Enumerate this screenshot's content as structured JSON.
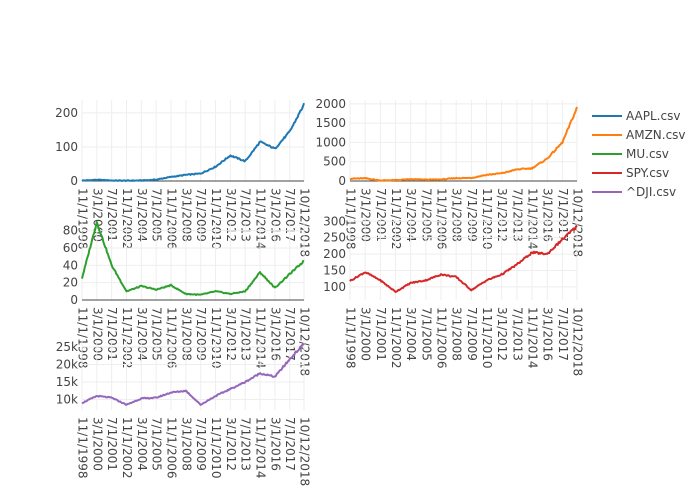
{
  "chart_data": [
    {
      "type": "line",
      "series": [
        {
          "name": "AAPL.csv",
          "color": "#1f77b4"
        }
      ],
      "x": [
        "11/1/1998",
        "3/1/2000",
        "7/1/2001",
        "11/1/2002",
        "3/1/2004",
        "7/1/2005",
        "11/1/2006",
        "3/1/2008",
        "7/1/2009",
        "11/1/2010",
        "3/1/2012",
        "7/1/2013",
        "11/1/2014",
        "3/1/2016",
        "7/1/2017",
        "10/12/2018"
      ],
      "values": [
        1.2,
        3.5,
        1.5,
        1.0,
        1.5,
        4,
        12,
        18,
        22,
        42,
        75,
        58,
        115,
        95,
        145,
        225
      ],
      "x_ticks": [
        "11/1/1998",
        "3/1/2000",
        "7/1/2001",
        "11/1/2002",
        "3/1/2004",
        "7/1/2005",
        "11/1/2006",
        "3/1/2008",
        "7/1/2009",
        "11/1/2010",
        "3/1/2012",
        "7/1/2013",
        "11/1/2014",
        "3/1/2016",
        "7/1/2017",
        "10/12/2018"
      ],
      "y_ticks": [
        0,
        100,
        200
      ],
      "y_tick_labels": [
        "0",
        "100",
        "200"
      ],
      "ylim": [
        0,
        238
      ],
      "grid": true
    },
    {
      "type": "line",
      "series": [
        {
          "name": "AMZN.csv",
          "color": "#ff7f0e"
        }
      ],
      "x": [
        "11/1/1998",
        "3/1/2000",
        "7/1/2001",
        "11/1/2002",
        "3/1/2004",
        "7/1/2005",
        "11/1/2006",
        "3/1/2008",
        "7/1/2009",
        "11/1/2010",
        "3/1/2012",
        "7/1/2013",
        "11/1/2014",
        "3/1/2016",
        "7/1/2017",
        "10/12/2018"
      ],
      "values": [
        60,
        70,
        15,
        22,
        45,
        35,
        38,
        75,
        80,
        160,
        200,
        300,
        330,
        580,
        1000,
        1900
      ],
      "x_ticks": [
        "11/1/1998",
        "3/1/2000",
        "7/1/2001",
        "11/1/2002",
        "3/1/2004",
        "7/1/2005",
        "11/1/2006",
        "3/1/2008",
        "7/1/2009",
        "11/1/2010",
        "3/1/2012",
        "7/1/2013",
        "11/1/2014",
        "3/1/2016",
        "7/1/2017",
        "10/12/2018"
      ],
      "y_ticks": [
        0,
        500,
        1000,
        1500,
        2000
      ],
      "y_tick_labels": [
        "0",
        "500",
        "1000",
        "1500",
        "2000"
      ],
      "ylim": [
        0,
        2100
      ],
      "grid": true
    },
    {
      "type": "line",
      "series": [
        {
          "name": "MU.csv",
          "color": "#2ca02c"
        }
      ],
      "x": [
        "11/1/1998",
        "3/1/2000",
        "7/1/2001",
        "11/1/2002",
        "3/1/2004",
        "7/1/2005",
        "11/1/2006",
        "3/1/2008",
        "7/1/2009",
        "11/1/2010",
        "3/1/2012",
        "7/1/2013",
        "11/1/2014",
        "3/1/2016",
        "7/1/2017",
        "10/12/2018"
      ],
      "values": [
        25,
        90,
        40,
        10,
        16,
        12,
        17,
        7,
        6,
        10,
        7,
        10,
        32,
        14,
        30,
        45
      ],
      "x_ticks": [
        "11/1/1998",
        "3/1/2000",
        "7/1/2001",
        "11/1/2002",
        "3/1/2004",
        "7/1/2005",
        "11/1/2006",
        "3/1/2008",
        "7/1/2009",
        "11/1/2010",
        "3/1/2012",
        "7/1/2013",
        "11/1/2014",
        "3/1/2016",
        "7/1/2017",
        "10/12/2018"
      ],
      "y_ticks": [
        0,
        20,
        40,
        60,
        80
      ],
      "y_tick_labels": [
        "0",
        "20",
        "40",
        "60",
        "80"
      ],
      "ylim": [
        0,
        90
      ],
      "grid": true
    },
    {
      "type": "line",
      "series": [
        {
          "name": "SPY.csv",
          "color": "#d62728"
        }
      ],
      "x": [
        "11/1/1998",
        "3/1/2000",
        "7/1/2001",
        "11/1/2002",
        "3/1/2004",
        "7/1/2005",
        "11/1/2006",
        "3/1/2008",
        "7/1/2009",
        "11/1/2010",
        "3/1/2012",
        "7/1/2013",
        "11/1/2014",
        "3/1/2016",
        "7/1/2017",
        "10/12/2018"
      ],
      "values": [
        118,
        145,
        120,
        85,
        112,
        120,
        138,
        130,
        90,
        120,
        138,
        168,
        205,
        200,
        245,
        285
      ],
      "x_ticks": [
        "11/1/1998",
        "3/1/2000",
        "7/1/2001",
        "11/1/2002",
        "3/1/2004",
        "7/1/2005",
        "11/1/2006",
        "3/1/2008",
        "7/1/2009",
        "11/1/2010",
        "3/1/2012",
        "7/1/2013",
        "11/1/2014",
        "3/1/2016",
        "7/1/2017",
        "10/12/2018"
      ],
      "y_ticks": [
        100,
        150,
        200,
        250,
        300
      ],
      "y_tick_labels": [
        "100",
        "150",
        "200",
        "250",
        "300"
      ],
      "ylim": [
        60,
        310
      ],
      "grid": true
    },
    {
      "type": "line",
      "series": [
        {
          "name": "^DJI.csv",
          "color": "#9467bd"
        }
      ],
      "x": [
        "11/1/1998",
        "3/1/2000",
        "7/1/2001",
        "11/1/2002",
        "3/1/2004",
        "7/1/2005",
        "11/1/2006",
        "3/1/2008",
        "7/1/2009",
        "11/1/2010",
        "3/1/2012",
        "7/1/2013",
        "11/1/2014",
        "3/1/2016",
        "7/1/2017",
        "10/12/2018"
      ],
      "values": [
        9000,
        11000,
        10500,
        8500,
        10300,
        10500,
        12000,
        12500,
        8500,
        11000,
        13000,
        15000,
        17500,
        16500,
        21500,
        26000
      ],
      "x_ticks": [
        "11/1/1998",
        "3/1/2000",
        "7/1/2001",
        "11/1/2002",
        "3/1/2004",
        "7/1/2005",
        "11/1/2006",
        "3/1/2008",
        "7/1/2009",
        "11/1/2010",
        "3/1/2012",
        "7/1/2013",
        "11/1/2014",
        "3/1/2016",
        "7/1/2017",
        "10/12/2018"
      ],
      "y_ticks": [
        10000,
        15000,
        20000,
        25000
      ],
      "y_tick_labels": [
        "10k",
        "15k",
        "20k",
        "25k"
      ],
      "ylim": [
        7000,
        27000
      ],
      "grid": true
    }
  ],
  "legend": {
    "placement": "right",
    "items": [
      {
        "label": "AAPL.csv",
        "color": "#1f77b4"
      },
      {
        "label": "AMZN.csv",
        "color": "#ff7f0e"
      },
      {
        "label": "MU.csv",
        "color": "#2ca02c"
      },
      {
        "label": "SPY.csv",
        "color": "#d62728"
      },
      {
        "label": "^DJI.csv",
        "color": "#9467bd"
      }
    ]
  }
}
